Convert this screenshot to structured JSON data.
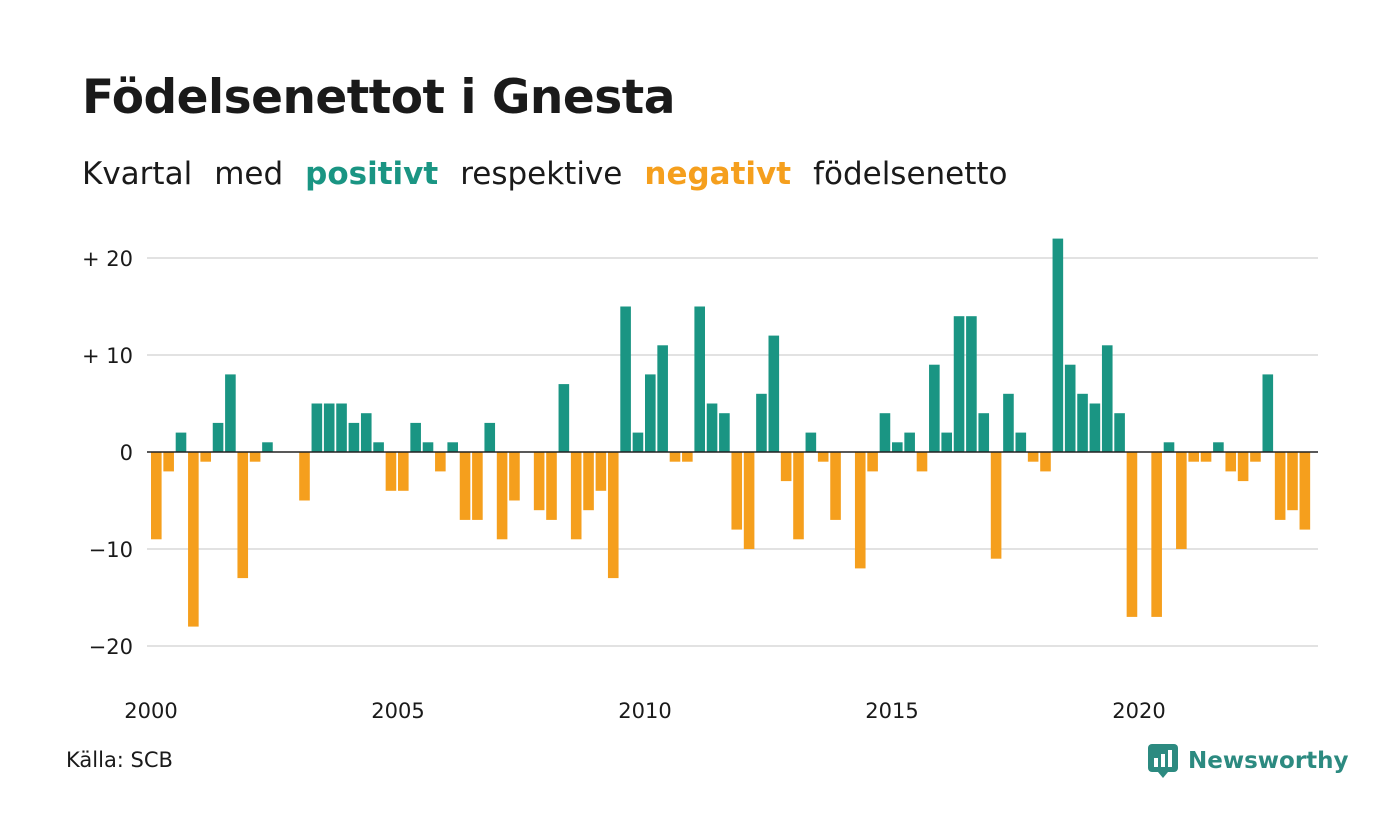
{
  "title": "Födelsenettot i Gnesta",
  "subtitle": {
    "part1": "Kvartal",
    "part2": "med",
    "positive": "positivt",
    "part3": "respektive",
    "negative": "negativt",
    "part4": "födelsenetto"
  },
  "source": "Källa: SCB",
  "brand": "Newsworthy",
  "icon": "chart-bubble-icon",
  "colors": {
    "positive": "#1a9583",
    "negative": "#f59f1d",
    "grid": "#e2e2e2",
    "zero": "#222222",
    "brand": "#2c8a80"
  },
  "chart_data": {
    "type": "bar",
    "first_year": 2000,
    "quarters_per_year": 4,
    "x_ticks": [
      "2000",
      "2005",
      "2010",
      "2015",
      "2020"
    ],
    "y_ticks": [
      {
        "value": 20,
        "label": "+ 20"
      },
      {
        "value": 10,
        "label": "+ 10"
      },
      {
        "value": 0,
        "label": "0"
      },
      {
        "value": -10,
        "label": "−10"
      },
      {
        "value": -20,
        "label": "−20"
      }
    ],
    "ylim": [
      -22,
      22
    ],
    "grid": true,
    "values": [
      -9,
      -2,
      2,
      -18,
      -1,
      3,
      8,
      -13,
      -1,
      1,
      0,
      0,
      -5,
      5,
      5,
      5,
      3,
      4,
      1,
      -4,
      -4,
      3,
      1,
      -2,
      1,
      -7,
      -7,
      3,
      -9,
      -5,
      0,
      -6,
      -7,
      7,
      -9,
      -6,
      -4,
      -13,
      15,
      2,
      8,
      11,
      -1,
      -1,
      15,
      5,
      4,
      -8,
      -10,
      6,
      12,
      -3,
      -9,
      2,
      -1,
      -7,
      0,
      -12,
      -2,
      4,
      1,
      2,
      -2,
      9,
      2,
      14,
      14,
      4,
      -11,
      6,
      2,
      -1,
      -2,
      22,
      9,
      6,
      5,
      11,
      4,
      -17,
      0,
      -17,
      1,
      -10,
      -1,
      -1,
      1,
      -2,
      -3,
      -1,
      8,
      -7,
      -6,
      -8
    ]
  }
}
